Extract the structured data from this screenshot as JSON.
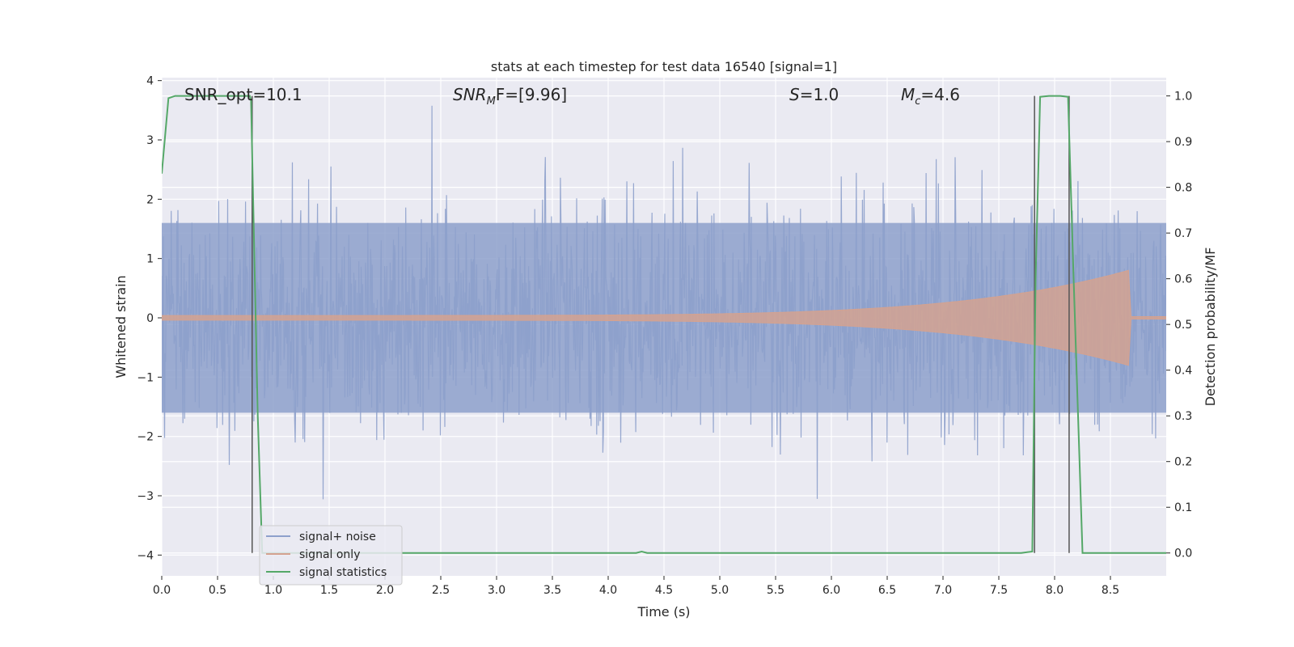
{
  "chart_data": {
    "type": "line",
    "title": "stats at each timestep for test data 16540 [signal=1]",
    "xlabel": "Time (s)",
    "ylabel": "Whitened strain",
    "y2label": "Detection probability/MF",
    "xlim": [
      0.0,
      9.0
    ],
    "ylim": [
      -4.35,
      4.05
    ],
    "y2lim": [
      -0.05,
      1.04
    ],
    "x_ticks": [
      "0.0",
      "0.5",
      "1.0",
      "1.5",
      "2.0",
      "2.5",
      "3.0",
      "3.5",
      "4.0",
      "4.5",
      "5.0",
      "5.5",
      "6.0",
      "6.5",
      "7.0",
      "7.5",
      "8.0",
      "8.5"
    ],
    "y_ticks": [
      "4",
      "3",
      "2",
      "1",
      "0",
      "−1",
      "−2",
      "−3",
      "−4"
    ],
    "y2_ticks": [
      "1.0",
      "0.9",
      "0.8",
      "0.7",
      "0.6",
      "0.5",
      "0.4",
      "0.3",
      "0.2",
      "0.1",
      "0.0"
    ],
    "grid": true,
    "legend_position": "lower-left",
    "annotations": {
      "snr_opt": "SNR_opt=10.1",
      "snr_mf_main": "SNR",
      "snr_mf_sub": "M",
      "snr_mf_rest": "F=[9.96]",
      "s_main": "S",
      "s_rest": "=1.0",
      "mc_main": "M",
      "mc_sub": "c",
      "mc_rest": "=4.6"
    },
    "series": [
      {
        "name": "signal+ noise",
        "color": "#8da0cb",
        "description_kind": "noise",
        "envelope_typical": 1.6,
        "envelope_max": 3.7
      },
      {
        "name": "signal only",
        "color": "#d4a290",
        "chirp_start_amplitude": 0.04,
        "chirp_peak_amplitude": 0.8,
        "chirp_peak_time": 8.66,
        "chirp_end": 8.68
      },
      {
        "name": "signal statistics",
        "color": "#55a868",
        "axis": "right",
        "x": [
          0.0,
          0.06,
          0.12,
          0.3,
          0.5,
          0.7,
          0.79,
          0.8,
          0.86,
          0.9,
          1.0,
          2.0,
          3.0,
          4.0,
          4.25,
          4.3,
          4.35,
          5.0,
          6.0,
          7.0,
          7.7,
          7.8,
          7.83,
          7.87,
          7.95,
          8.05,
          8.12,
          8.17,
          8.25,
          8.5,
          9.0
        ],
        "y": [
          0.83,
          0.995,
          1.0,
          1.0,
          1.0,
          1.0,
          1.0,
          0.99,
          0.3,
          0.0,
          0.0,
          0.0,
          0.0,
          0.0,
          0.0,
          0.003,
          0.0,
          0.0,
          0.0,
          0.0,
          0.0,
          0.003,
          0.6,
          0.998,
          1.0,
          1.0,
          0.998,
          0.6,
          0.0,
          0.0,
          0.0
        ]
      }
    ],
    "vertical_lines_x": [
      0.81,
      7.82,
      8.13
    ]
  }
}
